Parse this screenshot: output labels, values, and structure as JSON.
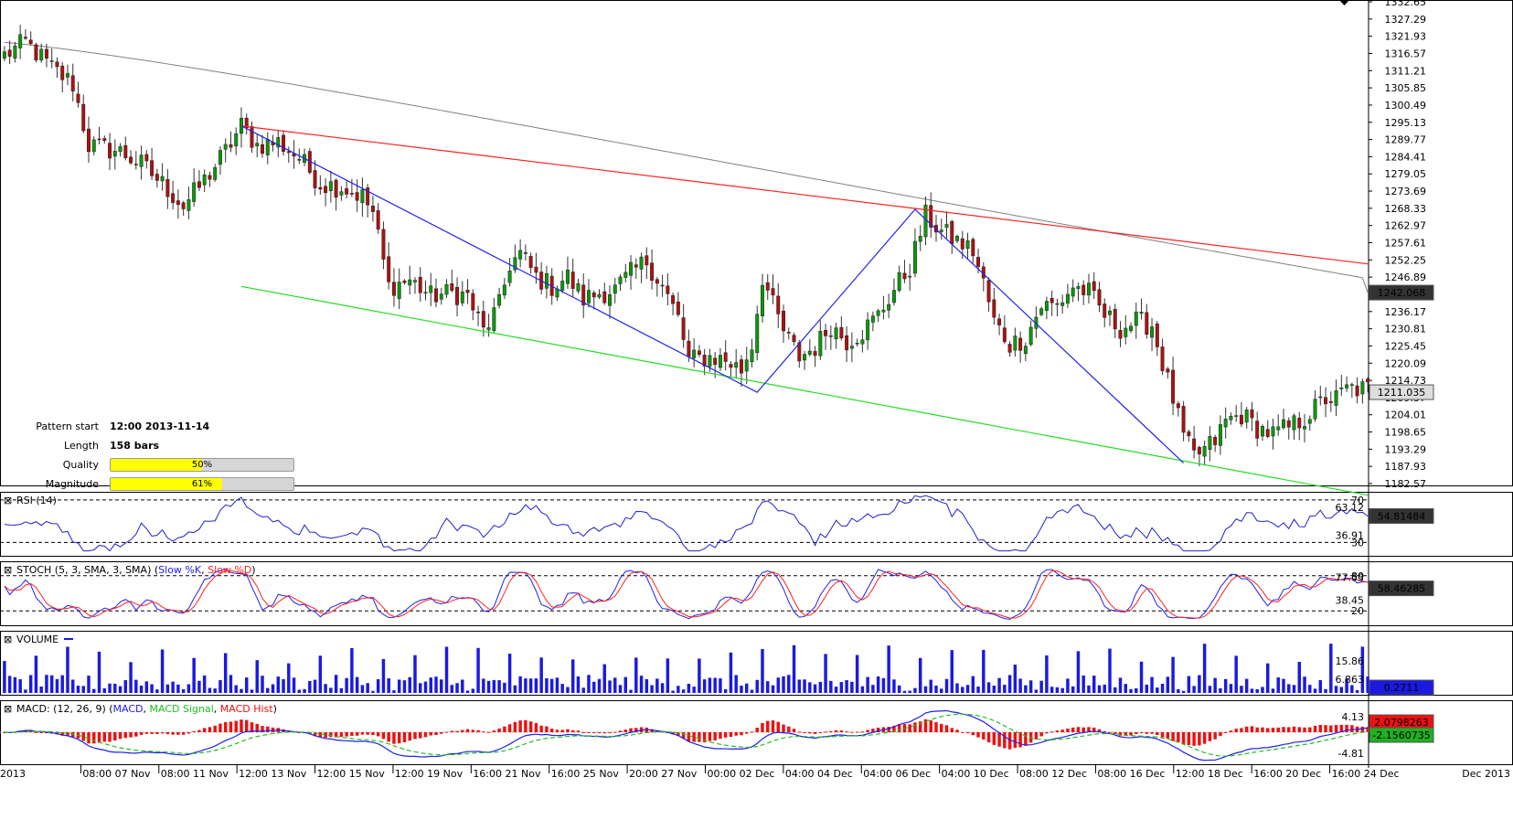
{
  "pattern": {
    "start_label": "Pattern start",
    "start_value": "12:00 2013-11-14",
    "length_label": "Length",
    "length_value": "158 bars",
    "quality_label": "Quality",
    "quality_value": 0.5,
    "quality_text": "50%",
    "magnitude_label": "Magnitude",
    "magnitude_value": 0.61,
    "magnitude_text": "61%"
  },
  "colors": {
    "bull": "#0a9a0a",
    "bear": "#b01010",
    "resistance": "#ff2020",
    "support": "#22dd22",
    "zigzag": "#2222ee",
    "ma": "#808080",
    "rsi": "#2020cc",
    "stoch_k": "#2020ee",
    "stoch_d": "#ff2020",
    "volume": "#1a1ae0",
    "macd": "#2020ee",
    "macd_signal": "#20c020",
    "macd_hist": "#ee1010"
  },
  "chart_data": [
    {
      "type": "candlestick",
      "panel": "price",
      "ylim": [
        1182.57,
        1332.65
      ],
      "y_ticks": [
        "1332.65",
        "1327.29",
        "1321.93",
        "1316.57",
        "1311.21",
        "1305.85",
        "1300.49",
        "1295.13",
        "1289.77",
        "1284.41",
        "1279.05",
        "1273.69",
        "1268.33",
        "1262.97",
        "1257.61",
        "1252.25",
        "1246.89",
        "1236.17",
        "1230.81",
        "1225.45",
        "1220.09",
        "1214.73",
        "1209.37",
        "1204.01",
        "1198.65",
        "1193.29",
        "1187.93",
        "1182.57"
      ],
      "last_price_label": "1211.035",
      "last_price": 1211.035,
      "ma_label": "1242.068",
      "ma_value": 1242.068,
      "x_labels": [
        "2013",
        "08:00 07 Nov",
        "08:00 11 Nov",
        "12:00 13 Nov",
        "12:00 15 Nov",
        "12:00 19 Nov",
        "16:00 21 Nov",
        "16:00 25 Nov",
        "20:00 27 Nov",
        "00:00 02 Dec",
        "04:00 04 Dec",
        "04:00 06 Dec",
        "04:00 10 Dec",
        "08:00 12 Dec",
        "08:00 16 Dec",
        "12:00 18 Dec",
        "16:00 20 Dec",
        "16:00 24 Dec"
      ],
      "x_right_label": "Dec 2013",
      "anchors": [
        [
          0,
          1316
        ],
        [
          4,
          1320
        ],
        [
          9,
          1312
        ],
        [
          13,
          1307
        ],
        [
          16,
          1288
        ],
        [
          22,
          1286
        ],
        [
          26,
          1282
        ],
        [
          30,
          1276
        ],
        [
          34,
          1269
        ],
        [
          38,
          1277
        ],
        [
          42,
          1286
        ],
        [
          45,
          1294
        ],
        [
          48,
          1288
        ],
        [
          52,
          1289
        ],
        [
          56,
          1284
        ],
        [
          60,
          1276
        ],
        [
          64,
          1275
        ],
        [
          68,
          1272
        ],
        [
          70,
          1267
        ],
        [
          73,
          1244
        ],
        [
          77,
          1246
        ],
        [
          81,
          1241
        ],
        [
          85,
          1242
        ],
        [
          88,
          1241
        ],
        [
          91,
          1230
        ],
        [
          94,
          1238
        ],
        [
          96,
          1251
        ],
        [
          98,
          1254
        ],
        [
          101,
          1247
        ],
        [
          104,
          1244
        ],
        [
          107,
          1247
        ],
        [
          110,
          1240
        ],
        [
          113,
          1242
        ],
        [
          116,
          1243
        ],
        [
          119,
          1248
        ],
        [
          122,
          1252
        ],
        [
          125,
          1244
        ],
        [
          128,
          1234
        ],
        [
          130,
          1221
        ],
        [
          134,
          1222
        ],
        [
          137,
          1221
        ],
        [
          140,
          1218
        ],
        [
          142,
          1226
        ],
        [
          144,
          1247
        ],
        [
          146,
          1238
        ],
        [
          148,
          1230
        ],
        [
          151,
          1222
        ],
        [
          154,
          1225
        ],
        [
          157,
          1232
        ],
        [
          160,
          1227
        ],
        [
          163,
          1230
        ],
        [
          166,
          1235
        ],
        [
          169,
          1243
        ],
        [
          172,
          1250
        ],
        [
          175,
          1266
        ],
        [
          178,
          1261
        ],
        [
          181,
          1258
        ],
        [
          184,
          1255
        ],
        [
          186,
          1245
        ],
        [
          188,
          1233
        ],
        [
          191,
          1226
        ],
        [
          194,
          1228
        ],
        [
          197,
          1238
        ],
        [
          200,
          1238
        ],
        [
          203,
          1244
        ],
        [
          206,
          1242
        ],
        [
          209,
          1235
        ],
        [
          212,
          1231
        ],
        [
          215,
          1233
        ],
        [
          218,
          1232
        ],
        [
          220,
          1220
        ],
        [
          222,
          1209
        ],
        [
          224,
          1197
        ],
        [
          226,
          1191
        ],
        [
          228,
          1193
        ],
        [
          230,
          1196
        ],
        [
          232,
          1202
        ],
        [
          235,
          1204
        ],
        [
          238,
          1200
        ],
        [
          241,
          1198
        ],
        [
          244,
          1200
        ],
        [
          247,
          1203
        ],
        [
          249,
          1206
        ],
        [
          251,
          1209
        ],
        [
          253,
          1209
        ],
        [
          255,
          1212
        ]
      ],
      "zigzag": [
        [
          45,
          1294
        ],
        [
          143,
          1211
        ],
        [
          173,
          1268
        ],
        [
          224,
          1189
        ]
      ],
      "resistance": [
        [
          45,
          1294
        ],
        [
          259,
          1251
        ]
      ],
      "support": [
        [
          45,
          1244
        ],
        [
          259,
          1179
        ]
      ]
    },
    {
      "type": "line",
      "panel": "rsi",
      "name": "RSI (14)",
      "levels": [
        70,
        30
      ],
      "ylim": [
        20,
        75
      ],
      "last_value_label": "54.81484",
      "last_value": 54.81484,
      "y_ticks": [
        "70",
        "63.12",
        "36.91",
        "30"
      ]
    },
    {
      "type": "line",
      "panel": "stoch",
      "name": "STOCH (5, 3, SMA, 3, SMA)",
      "legend": [
        "(",
        "Slow %K",
        ", ",
        "Slow %D",
        ")"
      ],
      "levels": [
        80,
        20
      ],
      "ylim": [
        0,
        100
      ],
      "last_value_label": "58.46285",
      "last_value": 58.46285,
      "y_ticks": [
        "80",
        "77.53",
        "38.45",
        "20"
      ]
    },
    {
      "type": "bar",
      "panel": "volume",
      "name": "VOLUME",
      "ylim": [
        0,
        30
      ],
      "last_value_label": "0.2711",
      "y_ticks": [
        "15.86",
        "6.863"
      ]
    },
    {
      "type": "line",
      "panel": "macd",
      "name": "MACD",
      "legend_prefix": "MACD: (12, 26, 9) (",
      "legend_items": [
        "MACD",
        "MACD Signal",
        "MACD Hist"
      ],
      "value_labels": [
        "2.0798263",
        "-2.1560735"
      ],
      "y_ticks": [
        "4.13",
        "-4.81"
      ],
      "ylim": [
        -12,
        12
      ]
    }
  ]
}
